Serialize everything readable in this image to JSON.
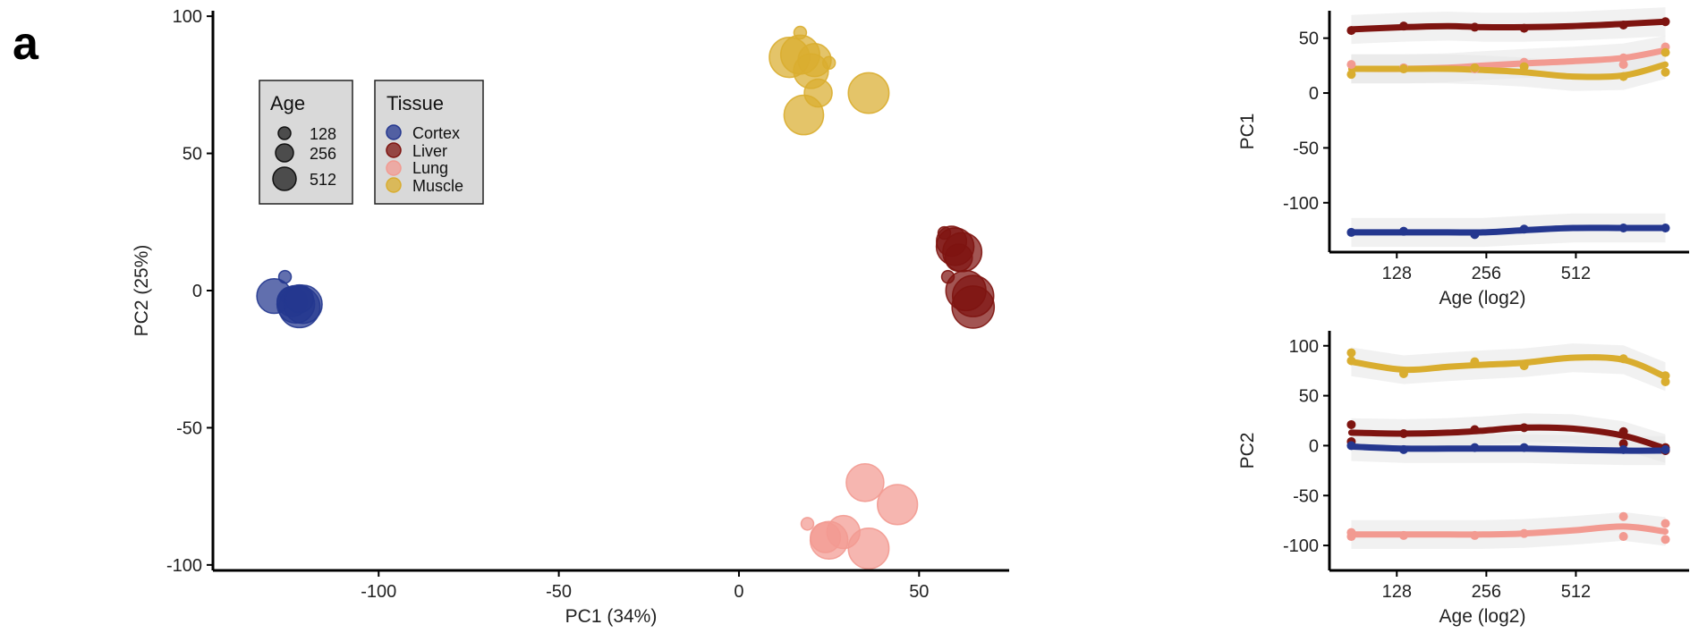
{
  "panel_label": "a",
  "colors": {
    "Cortex": "#24378f",
    "Liver": "#7e1410",
    "Lung": "#f29a91",
    "Muscle": "#d9ad2f"
  },
  "chart_data": [
    {
      "type": "scatter",
      "xlabel": "PC1 (34%)",
      "ylabel": "PC2 (25%)",
      "xlim": [
        -146,
        75
      ],
      "ylim": [
        -102,
        102
      ],
      "xticks": [
        -100,
        -50,
        0,
        50
      ],
      "yticks": [
        100,
        50,
        0,
        -50,
        -100
      ],
      "legends": {
        "age": {
          "title": "Age",
          "entries": [
            "128",
            "256",
            "512"
          ]
        },
        "tissue": {
          "title": "Tissue",
          "entries": [
            "Cortex",
            "Liver",
            "Lung",
            "Muscle"
          ]
        }
      },
      "series": [
        {
          "name": "Cortex",
          "points": [
            {
              "x": -129,
              "y": -2,
              "age": 400
            },
            {
              "x": -126,
              "y": 5,
              "age": 100
            },
            {
              "x": -125,
              "y": -2,
              "age": 130
            },
            {
              "x": -124,
              "y": -4,
              "age": 300
            },
            {
              "x": -123,
              "y": -5,
              "age": 480
            },
            {
              "x": -122,
              "y": -6,
              "age": 600
            },
            {
              "x": -121,
              "y": -5,
              "age": 500
            },
            {
              "x": -122,
              "y": -3,
              "age": 260
            }
          ]
        },
        {
          "name": "Liver",
          "points": [
            {
              "x": 57,
              "y": 21,
              "age": 100
            },
            {
              "x": 59,
              "y": 18,
              "age": 300
            },
            {
              "x": 60,
              "y": 16,
              "age": 480
            },
            {
              "x": 61,
              "y": 12,
              "age": 250
            },
            {
              "x": 62,
              "y": 14,
              "age": 520
            },
            {
              "x": 58,
              "y": 5,
              "age": 100
            },
            {
              "x": 63,
              "y": 0,
              "age": 560
            },
            {
              "x": 65,
              "y": -2,
              "age": 600
            },
            {
              "x": 65,
              "y": -6,
              "age": 640
            }
          ]
        },
        {
          "name": "Lung",
          "points": [
            {
              "x": 35,
              "y": -70,
              "age": 480
            },
            {
              "x": 44,
              "y": -78,
              "age": 560
            },
            {
              "x": 29,
              "y": -88,
              "age": 360
            },
            {
              "x": 19,
              "y": -85,
              "age": 100
            },
            {
              "x": 24,
              "y": -90,
              "age": 300
            },
            {
              "x": 25,
              "y": -91,
              "age": 480
            },
            {
              "x": 36,
              "y": -94,
              "age": 580
            }
          ]
        },
        {
          "name": "Muscle",
          "points": [
            {
              "x": 17,
              "y": 94,
              "age": 100
            },
            {
              "x": 14,
              "y": 85,
              "age": 560
            },
            {
              "x": 17,
              "y": 86,
              "age": 520
            },
            {
              "x": 21,
              "y": 84,
              "age": 360
            },
            {
              "x": 25,
              "y": 83,
              "age": 100
            },
            {
              "x": 20,
              "y": 80,
              "age": 400
            },
            {
              "x": 22,
              "y": 72,
              "age": 260
            },
            {
              "x": 36,
              "y": 72,
              "age": 580
            },
            {
              "x": 18,
              "y": 64,
              "age": 540
            }
          ]
        }
      ]
    },
    {
      "type": "line",
      "xlabel": "Age (log2)",
      "ylabel": "PC1",
      "xscale": "log2",
      "xlim": [
        76,
        1230
      ],
      "ylim": [
        -145,
        75
      ],
      "xticks": [
        128,
        256,
        512
      ],
      "yticks": [
        50,
        0,
        -50,
        -100
      ],
      "series": [
        {
          "name": "Liver",
          "points": [
            [
              90,
              57
            ],
            [
              135,
              61
            ],
            [
              234,
              60
            ],
            [
              343,
              59
            ],
            [
              740,
              62
            ],
            [
              1024,
              65
            ]
          ],
          "smooth": [
            [
              90,
              58
            ],
            [
              135,
              60
            ],
            [
              190,
              61
            ],
            [
              250,
              60
            ],
            [
              343,
              60
            ],
            [
              500,
              61
            ],
            [
              740,
              63
            ],
            [
              1024,
              65
            ]
          ]
        },
        {
          "name": "Lung",
          "points": [
            [
              90,
              26
            ],
            [
              135,
              23
            ],
            [
              234,
              22
            ],
            [
              343,
              28
            ],
            [
              740,
              26
            ],
            [
              740,
              32
            ],
            [
              1024,
              42
            ]
          ],
          "smooth": [
            [
              90,
              22
            ],
            [
              135,
              22
            ],
            [
              190,
              23
            ],
            [
              250,
              25
            ],
            [
              343,
              27
            ],
            [
              500,
              29
            ],
            [
              740,
              32
            ],
            [
              1024,
              39
            ]
          ]
        },
        {
          "name": "Muscle",
          "points": [
            [
              90,
              17
            ],
            [
              135,
              22
            ],
            [
              234,
              23
            ],
            [
              343,
              24
            ],
            [
              740,
              15
            ],
            [
              1024,
              19
            ],
            [
              1024,
              37
            ]
          ],
          "smooth": [
            [
              90,
              22
            ],
            [
              135,
              22
            ],
            [
              190,
              22
            ],
            [
              250,
              21
            ],
            [
              343,
              19
            ],
            [
              500,
              15
            ],
            [
              740,
              16
            ],
            [
              1024,
              26
            ]
          ]
        },
        {
          "name": "Cortex",
          "points": [
            [
              90,
              -127
            ],
            [
              135,
              -126
            ],
            [
              234,
              -129
            ],
            [
              343,
              -124
            ],
            [
              740,
              -123
            ],
            [
              1024,
              -123
            ]
          ],
          "smooth": [
            [
              90,
              -127
            ],
            [
              135,
              -127
            ],
            [
              190,
              -127
            ],
            [
              250,
              -127
            ],
            [
              343,
              -125
            ],
            [
              500,
              -123
            ],
            [
              740,
              -123
            ],
            [
              1024,
              -123
            ]
          ]
        }
      ]
    },
    {
      "type": "line",
      "xlabel": "Age (log2)",
      "ylabel": "PC2",
      "xscale": "log2",
      "xlim": [
        76,
        1230
      ],
      "ylim": [
        -125,
        115
      ],
      "xticks": [
        128,
        256,
        512
      ],
      "yticks": [
        100,
        50,
        0,
        -50,
        -100
      ],
      "series": [
        {
          "name": "Muscle",
          "points": [
            [
              90,
              93
            ],
            [
              90,
              85
            ],
            [
              135,
              72
            ],
            [
              234,
              84
            ],
            [
              343,
              80
            ],
            [
              740,
              87
            ],
            [
              1024,
              70
            ],
            [
              1024,
              64
            ]
          ],
          "smooth": [
            [
              90,
              84
            ],
            [
              135,
              76
            ],
            [
              190,
              79
            ],
            [
              250,
              81
            ],
            [
              343,
              83
            ],
            [
              500,
              88
            ],
            [
              740,
              86
            ],
            [
              1024,
              69
            ]
          ]
        },
        {
          "name": "Liver",
          "points": [
            [
              90,
              21
            ],
            [
              90,
              4
            ],
            [
              135,
              12
            ],
            [
              234,
              16
            ],
            [
              343,
              18
            ],
            [
              740,
              14
            ],
            [
              740,
              2
            ],
            [
              1024,
              -5
            ],
            [
              1024,
              -2
            ]
          ],
          "smooth": [
            [
              90,
              13
            ],
            [
              135,
              12
            ],
            [
              190,
              13
            ],
            [
              250,
              15
            ],
            [
              343,
              18
            ],
            [
              500,
              17
            ],
            [
              740,
              10
            ],
            [
              1024,
              -3
            ]
          ]
        },
        {
          "name": "Cortex",
          "points": [
            [
              90,
              0
            ],
            [
              135,
              -4
            ],
            [
              234,
              -2
            ],
            [
              343,
              -2
            ],
            [
              740,
              -4
            ],
            [
              1024,
              -4
            ]
          ],
          "smooth": [
            [
              90,
              -1
            ],
            [
              135,
              -3
            ],
            [
              190,
              -3
            ],
            [
              250,
              -3
            ],
            [
              343,
              -3
            ],
            [
              500,
              -4
            ],
            [
              740,
              -5
            ],
            [
              1024,
              -5
            ]
          ]
        },
        {
          "name": "Lung",
          "points": [
            [
              90,
              -87
            ],
            [
              90,
              -91
            ],
            [
              135,
              -90
            ],
            [
              234,
              -90
            ],
            [
              343,
              -88
            ],
            [
              740,
              -71
            ],
            [
              740,
              -91
            ],
            [
              1024,
              -78
            ],
            [
              1024,
              -94
            ]
          ],
          "smooth": [
            [
              90,
              -89
            ],
            [
              135,
              -89
            ],
            [
              190,
              -89
            ],
            [
              250,
              -89
            ],
            [
              343,
              -88
            ],
            [
              500,
              -85
            ],
            [
              740,
              -81
            ],
            [
              1024,
              -86
            ]
          ]
        }
      ]
    }
  ]
}
